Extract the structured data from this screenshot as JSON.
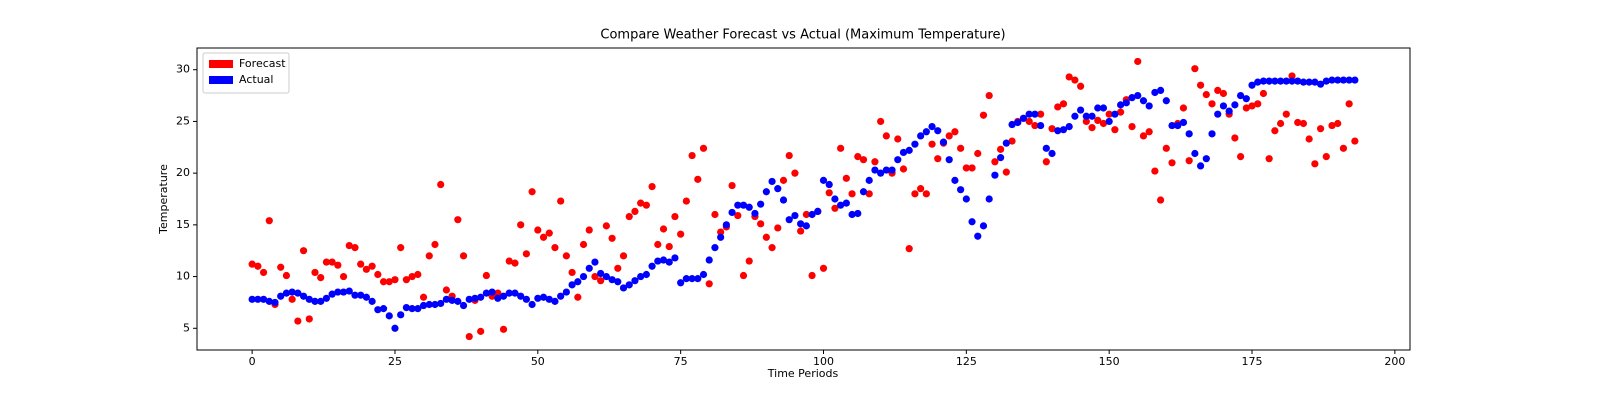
{
  "chart_data": {
    "type": "scatter",
    "title": "Compare Weather Forecast vs Actual (Maximum Temperature)",
    "x_label": "Time Periods",
    "y_label": "Temperature",
    "x": [
      0,
      1,
      2,
      3,
      4,
      5,
      6,
      7,
      8,
      9,
      10,
      11,
      12,
      13,
      14,
      15,
      16,
      17,
      18,
      19,
      20,
      21,
      22,
      23,
      24,
      25,
      26,
      27,
      28,
      29,
      30,
      31,
      32,
      33,
      34,
      35,
      36,
      37,
      38,
      39,
      40,
      41,
      42,
      43,
      44,
      45,
      46,
      47,
      48,
      49,
      50,
      51,
      52,
      53,
      54,
      55,
      56,
      57,
      58,
      59,
      60,
      61,
      62,
      63,
      64,
      65,
      66,
      67,
      68,
      69,
      70,
      71,
      72,
      73,
      74,
      75,
      76,
      77,
      78,
      79,
      80,
      81,
      82,
      83,
      84,
      85,
      86,
      87,
      88,
      89,
      90,
      91,
      92,
      93,
      94,
      95,
      96,
      97,
      98,
      99,
      100,
      101,
      102,
      103,
      104,
      105,
      106,
      107,
      108,
      109,
      110,
      111,
      112,
      113,
      114,
      115,
      116,
      117,
      118,
      119,
      120,
      121,
      122,
      123,
      124,
      125,
      126,
      127,
      128,
      129,
      130,
      131,
      132,
      133,
      134,
      135,
      136,
      137,
      138,
      139,
      140,
      141,
      142,
      143,
      144,
      145,
      146,
      147,
      148,
      149,
      150,
      151,
      152,
      153,
      154,
      155,
      156,
      157,
      158,
      159,
      160,
      161,
      162,
      163,
      164,
      165,
      166,
      167,
      168,
      169,
      170,
      171,
      172,
      173,
      174,
      175,
      176,
      177,
      178,
      179,
      180,
      181,
      182,
      183,
      184,
      185,
      186,
      187,
      188,
      189,
      190,
      191,
      192,
      193
    ],
    "series": [
      {
        "name": "Forecast",
        "color": "#ff0000",
        "values": [
          11.2,
          11.0,
          10.4,
          15.4,
          7.3,
          10.9,
          10.1,
          7.8,
          5.7,
          12.5,
          5.9,
          10.4,
          9.9,
          11.4,
          11.4,
          11.1,
          10.0,
          13.0,
          12.8,
          11.2,
          10.7,
          11.0,
          10.2,
          9.5,
          9.5,
          9.7,
          12.8,
          9.7,
          10.0,
          10.2,
          8.0,
          12.0,
          13.1,
          18.9,
          8.7,
          8.1,
          15.5,
          12.0,
          4.2,
          7.7,
          4.7,
          10.1,
          8.1,
          8.4,
          4.9,
          11.5,
          11.3,
          15.0,
          12.2,
          18.2,
          14.5,
          13.8,
          14.2,
          12.8,
          17.3,
          12.0,
          10.4,
          8.0,
          13.1,
          14.5,
          10.0,
          9.6,
          14.9,
          13.7,
          10.8,
          12.0,
          15.8,
          16.3,
          17.1,
          16.9,
          18.7,
          13.1,
          14.6,
          12.9,
          15.8,
          14.1,
          17.3,
          21.7,
          19.4,
          22.4,
          9.3,
          16.0,
          14.3,
          14.8,
          18.8,
          15.9,
          10.1,
          11.5,
          15.8,
          15.1,
          13.8,
          12.8,
          14.7,
          19.3,
          21.7,
          20.0,
          14.4,
          16.0,
          10.1,
          16.3,
          10.8,
          18.1,
          16.6,
          22.4,
          19.5,
          18.0,
          21.6,
          21.3,
          18.0,
          21.1,
          25.0,
          23.6,
          20.0,
          23.3,
          20.4,
          12.7,
          18.0,
          18.5,
          18.0,
          22.8,
          21.4,
          22.9,
          23.6,
          24.0,
          22.4,
          20.5,
          20.5,
          21.9,
          25.6,
          27.5,
          21.1,
          22.3,
          20.1,
          23.1,
          25.0,
          25.3,
          25.0,
          24.6,
          25.7,
          21.1,
          24.3,
          26.4,
          26.7,
          29.3,
          29.0,
          28.4,
          25.0,
          24.4,
          25.1,
          24.8,
          25.7,
          24.2,
          25.9,
          27.1,
          24.5,
          30.8,
          23.6,
          24.0,
          20.2,
          17.4,
          22.4,
          21.0,
          24.8,
          26.3,
          21.2,
          30.1,
          28.5,
          27.6,
          26.7,
          28.0,
          27.7,
          25.7,
          23.4,
          21.6,
          26.3,
          26.5,
          26.7,
          27.7,
          21.4,
          24.1,
          24.8,
          25.7,
          29.4,
          24.9,
          24.8,
          23.3,
          20.9,
          24.3,
          21.6,
          24.6,
          24.8,
          22.4,
          26.7,
          23.1
        ]
      },
      {
        "name": "Actual",
        "color": "#0000ff",
        "values": [
          7.8,
          7.8,
          7.8,
          7.6,
          7.5,
          8.1,
          8.4,
          8.5,
          8.4,
          8.1,
          7.8,
          7.6,
          7.6,
          7.9,
          8.3,
          8.5,
          8.5,
          8.6,
          8.2,
          8.2,
          8.0,
          7.6,
          6.8,
          6.9,
          6.2,
          5.0,
          6.3,
          7.0,
          6.9,
          6.9,
          7.2,
          7.3,
          7.3,
          7.4,
          7.8,
          7.7,
          7.6,
          7.2,
          7.8,
          7.9,
          8.0,
          8.4,
          8.5,
          7.9,
          8.1,
          8.4,
          8.4,
          8.1,
          7.8,
          7.3,
          7.9,
          8.0,
          7.8,
          7.6,
          8.1,
          8.5,
          9.2,
          9.5,
          10.0,
          10.8,
          11.4,
          10.3,
          10.0,
          9.7,
          9.5,
          8.9,
          9.2,
          9.6,
          10.0,
          10.2,
          11.0,
          11.5,
          11.6,
          11.4,
          11.8,
          9.4,
          9.8,
          9.8,
          9.8,
          10.2,
          11.6,
          12.8,
          13.8,
          15.0,
          16.2,
          16.9,
          16.9,
          16.7,
          16.1,
          17.0,
          18.2,
          19.2,
          18.5,
          17.4,
          15.5,
          15.9,
          15.1,
          14.9,
          16.0,
          16.3,
          19.3,
          18.9,
          17.5,
          16.9,
          17.1,
          16.0,
          16.1,
          18.2,
          19.3,
          20.3,
          20.0,
          20.3,
          20.3,
          21.3,
          22.0,
          22.2,
          22.8,
          23.6,
          24.0,
          24.5,
          24.1,
          23.0,
          21.3,
          19.3,
          18.4,
          17.5,
          15.3,
          13.9,
          14.9,
          17.5,
          19.8,
          21.5,
          22.9,
          24.7,
          24.9,
          25.3,
          25.7,
          25.7,
          24.6,
          22.4,
          21.9,
          24.1,
          24.2,
          24.5,
          25.5,
          26.1,
          25.5,
          25.5,
          26.3,
          26.3,
          25.0,
          25.7,
          26.6,
          26.8,
          27.3,
          27.5,
          27.0,
          26.5,
          27.8,
          28.0,
          27.0,
          24.6,
          24.6,
          24.9,
          23.8,
          21.9,
          20.7,
          21.4,
          23.8,
          25.7,
          26.5,
          26.0,
          26.6,
          27.5,
          27.2,
          28.5,
          28.8,
          28.9,
          28.9,
          28.9,
          28.9,
          28.9,
          28.9,
          28.9,
          28.8,
          28.8,
          28.8,
          28.6,
          28.9,
          29.0,
          29.0,
          29.0,
          29.0,
          29.0
        ]
      }
    ],
    "xlim": [
      -9.65,
      202.65
    ],
    "ylim": [
      2.9,
      32.1
    ],
    "xticks": [
      0,
      25,
      50,
      75,
      100,
      125,
      150,
      175,
      200
    ],
    "yticks": [
      5,
      10,
      15,
      20,
      25,
      30
    ],
    "legend": "upper left",
    "grid": false
  }
}
